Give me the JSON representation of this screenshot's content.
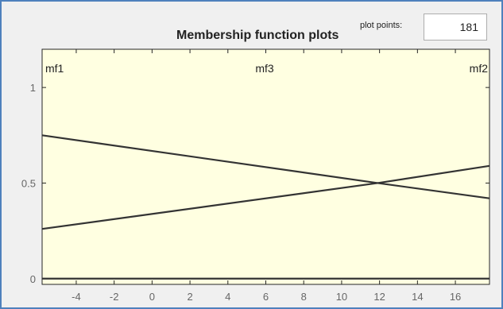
{
  "window": {
    "title": "Membership function plots",
    "plot_points_label": "plot points:",
    "plot_points_value": "181"
  },
  "colors": {
    "frame_border": "#4f81bd",
    "plot_background": "#ffffe1",
    "curve": "#333333",
    "axis_text": "#666666"
  },
  "chart_data": {
    "type": "line",
    "title": "Membership function plots",
    "xlabel": "",
    "ylabel": "",
    "xlim": [
      -5.8,
      17.8
    ],
    "ylim": [
      -0.03,
      1.2
    ],
    "x_ticks": [
      -4,
      -2,
      0,
      2,
      4,
      6,
      8,
      10,
      12,
      14,
      16
    ],
    "y_ticks": [
      0,
      0.5,
      1
    ],
    "x_tick_labels": [
      "-4",
      "-2",
      "0",
      "2",
      "4",
      "6",
      "8",
      "10",
      "12",
      "14",
      "16"
    ],
    "y_tick_labels": [
      "0",
      "0.5",
      "1"
    ],
    "grid": false,
    "mf_labels": [
      "mf1",
      "mf3",
      "mf2"
    ],
    "series": [
      {
        "name": "mf1",
        "x": [
          -5.8,
          17.8
        ],
        "y": [
          0,
          0
        ]
      },
      {
        "name": "mf3",
        "x": [
          -5.8,
          11.9,
          17.8
        ],
        "y": [
          0.75,
          0.5,
          0.42
        ]
      },
      {
        "name": "mf2",
        "x": [
          -5.8,
          11.9,
          17.8
        ],
        "y": [
          0.26,
          0.5,
          0.59
        ]
      }
    ]
  }
}
